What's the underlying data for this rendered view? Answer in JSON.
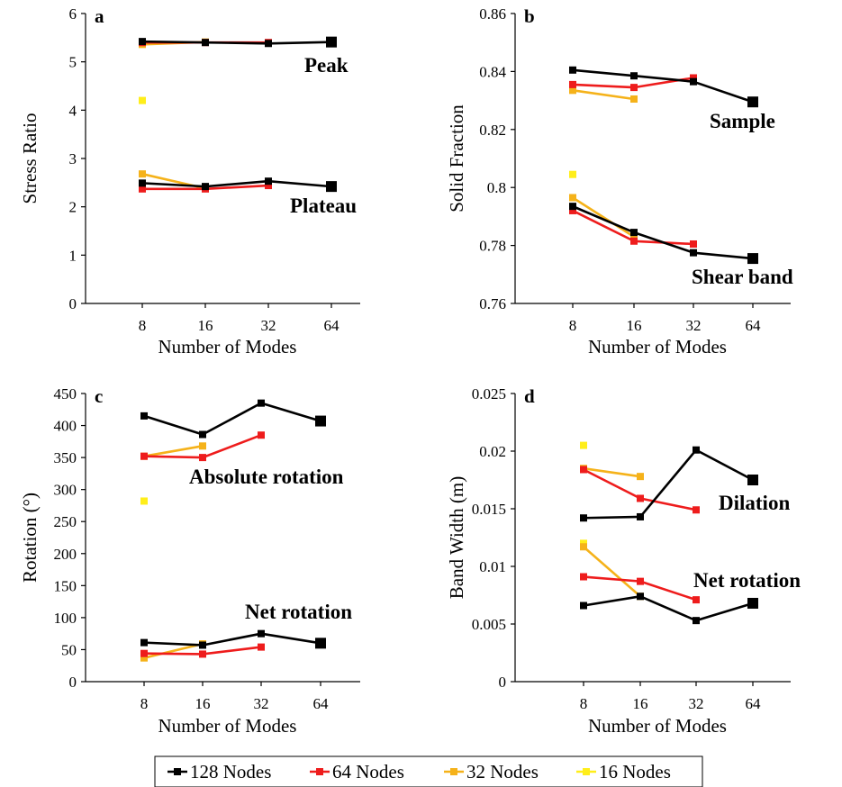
{
  "colors": {
    "128 Nodes": "#000000",
    "64 Nodes": "#ee1c1c",
    "32 Nodes": "#f5b21a",
    "16 Nodes": "#ffee1a"
  },
  "legend": [
    "128 Nodes",
    "64 Nodes",
    "32 Nodes",
    "16 Nodes"
  ],
  "chart_data": [
    {
      "panel": "a",
      "type": "line",
      "xlabel": "Number of Modes",
      "ylabel": "Stress Ratio",
      "xcategories": [
        "8",
        "16",
        "32",
        "64"
      ],
      "ylim": [
        0,
        6
      ],
      "yticks": [
        "0",
        "1",
        "2",
        "3",
        "4",
        "5",
        "6"
      ],
      "annotations": [
        "Peak",
        "Plateau"
      ],
      "series": [
        {
          "name": "128 Nodes",
          "group": "Peak",
          "values": [
            5.42,
            5.4,
            5.38,
            5.41
          ]
        },
        {
          "name": "128 Nodes",
          "group": "Plateau",
          "values": [
            2.49,
            2.42,
            2.53,
            2.42
          ]
        },
        {
          "name": "64 Nodes",
          "group": "Peak",
          "values": [
            5.4,
            5.4,
            5.4,
            null
          ]
        },
        {
          "name": "64 Nodes",
          "group": "Plateau",
          "values": [
            2.37,
            2.37,
            2.44,
            null
          ]
        },
        {
          "name": "32 Nodes",
          "group": "Peak",
          "values": [
            5.36,
            5.41,
            null,
            null
          ]
        },
        {
          "name": "32 Nodes",
          "group": "Plateau",
          "values": [
            2.68,
            2.38,
            null,
            null
          ]
        },
        {
          "name": "16 Nodes",
          "group": "Peak",
          "values": [
            4.2,
            null,
            null,
            null
          ]
        }
      ]
    },
    {
      "panel": "b",
      "type": "line",
      "xlabel": "Number of Modes",
      "ylabel": "Solid Fraction",
      "xcategories": [
        "8",
        "16",
        "32",
        "64"
      ],
      "ylim": [
        0.76,
        0.86
      ],
      "yticks": [
        "0.76",
        "0.78",
        "0.8",
        "0.82",
        "0.84",
        "0.86"
      ],
      "annotations": [
        "Sample",
        "Shear band"
      ],
      "series": [
        {
          "name": "128 Nodes",
          "group": "Sample",
          "values": [
            0.8405,
            0.8385,
            0.8365,
            0.8295
          ]
        },
        {
          "name": "128 Nodes",
          "group": "Shear band",
          "values": [
            0.7935,
            0.7845,
            0.7775,
            0.7755
          ]
        },
        {
          "name": "64 Nodes",
          "group": "Sample",
          "values": [
            0.8355,
            0.8345,
            0.8378,
            null
          ]
        },
        {
          "name": "64 Nodes",
          "group": "Shear band",
          "values": [
            0.792,
            0.7815,
            0.7805,
            null
          ]
        },
        {
          "name": "32 Nodes",
          "group": "Sample",
          "values": [
            0.8335,
            0.8305,
            null,
            null
          ]
        },
        {
          "name": "32 Nodes",
          "group": "Shear band",
          "values": [
            0.7965,
            0.783,
            null,
            null
          ]
        },
        {
          "name": "16 Nodes",
          "group": "Shear band",
          "values": [
            0.8045,
            null,
            null,
            null
          ]
        }
      ]
    },
    {
      "panel": "c",
      "type": "line",
      "xlabel": "Number of Modes",
      "ylabel": "Rotation (°)",
      "xcategories": [
        "8",
        "16",
        "32",
        "64"
      ],
      "ylim": [
        0,
        450
      ],
      "yticks": [
        "0",
        "50",
        "100",
        "150",
        "200",
        "250",
        "300",
        "350",
        "400",
        "450"
      ],
      "annotations": [
        "Absolute rotation",
        "Net rotation"
      ],
      "series": [
        {
          "name": "128 Nodes",
          "group": "Absolute rotation",
          "values": [
            415,
            386,
            435,
            407
          ]
        },
        {
          "name": "128 Nodes",
          "group": "Net rotation",
          "values": [
            61,
            57,
            75,
            60
          ]
        },
        {
          "name": "64 Nodes",
          "group": "Absolute rotation",
          "values": [
            352,
            350,
            385,
            null
          ]
        },
        {
          "name": "64 Nodes",
          "group": "Net rotation",
          "values": [
            44,
            43,
            54,
            null
          ]
        },
        {
          "name": "32 Nodes",
          "group": "Absolute rotation",
          "values": [
            352,
            368,
            null,
            null
          ]
        },
        {
          "name": "32 Nodes",
          "group": "Net rotation",
          "values": [
            37,
            59,
            null,
            null
          ]
        },
        {
          "name": "16 Nodes",
          "group": "Absolute rotation",
          "values": [
            282,
            null,
            null,
            null
          ]
        }
      ]
    },
    {
      "panel": "d",
      "type": "line",
      "xlabel": "Number of Modes",
      "ylabel": "Band Width (m)",
      "xcategories": [
        "8",
        "16",
        "32",
        "64"
      ],
      "ylim": [
        0,
        0.025
      ],
      "yticks": [
        "0",
        "0.005",
        "0.01",
        "0.015",
        "0.02",
        "0.025"
      ],
      "annotations": [
        "Dilation",
        "Net rotation"
      ],
      "series": [
        {
          "name": "128 Nodes",
          "group": "Dilation",
          "values": [
            0.0142,
            0.0143,
            0.0201,
            0.0175
          ]
        },
        {
          "name": "128 Nodes",
          "group": "Net rotation",
          "values": [
            0.0066,
            0.0074,
            0.0053,
            0.0068
          ]
        },
        {
          "name": "64 Nodes",
          "group": "Dilation",
          "values": [
            0.0184,
            0.0159,
            0.0149,
            null
          ]
        },
        {
          "name": "64 Nodes",
          "group": "Net rotation",
          "values": [
            0.0091,
            0.0087,
            0.0071,
            null
          ]
        },
        {
          "name": "32 Nodes",
          "group": "Dilation",
          "values": [
            0.0185,
            0.0178,
            null,
            null
          ]
        },
        {
          "name": "32 Nodes",
          "group": "Net rotation",
          "values": [
            0.0117,
            0.0074,
            null,
            null
          ]
        },
        {
          "name": "16 Nodes",
          "group": "Dilation",
          "values": [
            0.0205,
            null,
            null,
            null
          ]
        },
        {
          "name": "16 Nodes",
          "group": "Net rotation",
          "values": [
            0.012,
            null,
            null,
            null
          ]
        }
      ]
    }
  ]
}
